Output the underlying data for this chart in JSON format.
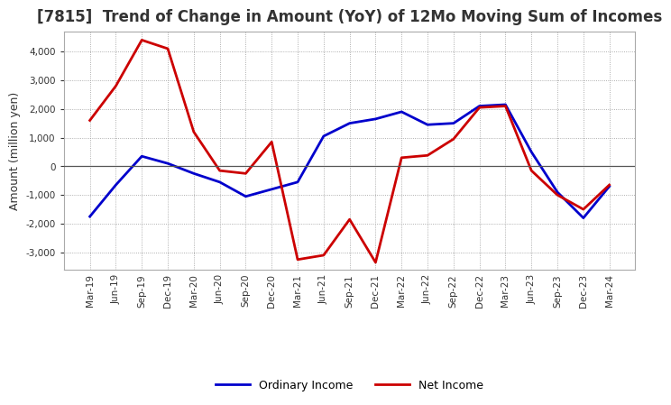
{
  "title": "[7815]  Trend of Change in Amount (YoY) of 12Mo Moving Sum of Incomes",
  "ylabel": "Amount (million yen)",
  "x_labels": [
    "Mar-19",
    "Jun-19",
    "Sep-19",
    "Dec-19",
    "Mar-20",
    "Jun-20",
    "Sep-20",
    "Dec-20",
    "Mar-21",
    "Jun-21",
    "Sep-21",
    "Dec-21",
    "Mar-22",
    "Jun-22",
    "Sep-22",
    "Dec-22",
    "Mar-23",
    "Jun-23",
    "Sep-23",
    "Dec-23",
    "Mar-24"
  ],
  "ordinary_income": [
    -1750,
    -650,
    350,
    100,
    -250,
    -550,
    -1050,
    -800,
    -550,
    1050,
    1500,
    1650,
    1900,
    1450,
    1500,
    2100,
    2150,
    500,
    -900,
    -1800,
    -700
  ],
  "net_income": [
    1600,
    2800,
    4400,
    4100,
    1200,
    -150,
    -250,
    850,
    -3250,
    -3100,
    -1850,
    -3350,
    300,
    380,
    950,
    2050,
    2100,
    -150,
    -1000,
    -1500,
    -650
  ],
  "ylim": [
    -3600,
    4700
  ],
  "yticks": [
    -3000,
    -2000,
    -1000,
    0,
    1000,
    2000,
    3000,
    4000
  ],
  "ordinary_color": "#0000cc",
  "net_color": "#cc0000",
  "bg_color": "#ffffff",
  "plot_bg_color": "#ffffff",
  "grid_color": "#999999",
  "legend_ordinary": "Ordinary Income",
  "legend_net": "Net Income",
  "line_width": 2.0,
  "title_color": "#333333",
  "title_fontsize": 12
}
